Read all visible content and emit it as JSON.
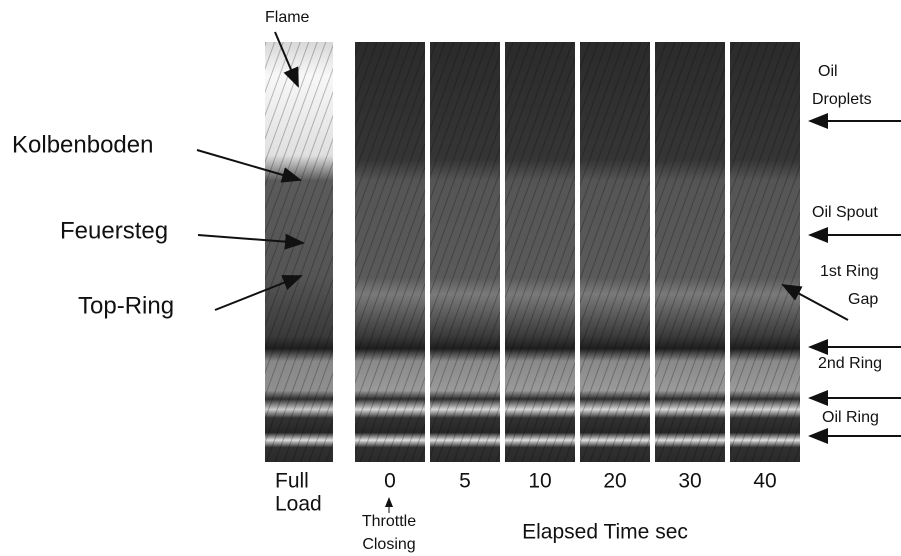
{
  "top_label": "Flame",
  "left_labels": [
    "Kolbenboden",
    "Feuersteg",
    "Top-Ring"
  ],
  "right_labels": [
    [
      "Oil",
      "Droplets"
    ],
    [
      "Oil Spout"
    ],
    [
      "1st Ring",
      "Gap"
    ],
    [
      "2nd Ring"
    ],
    [
      "Oil Ring"
    ]
  ],
  "strip_labels": [
    [
      "Full",
      "Load"
    ],
    [
      "0"
    ],
    [
      "5"
    ],
    [
      "10"
    ],
    [
      "20"
    ],
    [
      "30"
    ],
    [
      "40"
    ]
  ],
  "throttle_note": [
    "Throttle",
    "Closing"
  ],
  "axis_label": "Elapsed Time sec"
}
